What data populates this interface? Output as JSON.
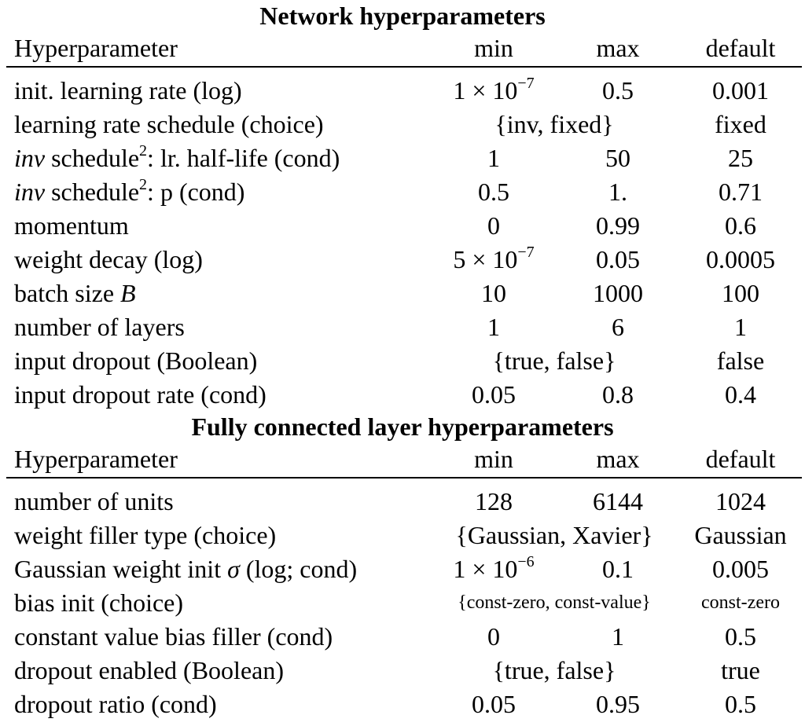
{
  "sections": [
    {
      "title": "Network hyperparameters",
      "headers": {
        "name": "Hyperparameter",
        "min": "min",
        "max": "max",
        "default": "default"
      },
      "rows": [
        {
          "name_html": "init. learning rate (log)",
          "min_html": "1 × 10<sup>−7</sup>",
          "max": "0.5",
          "default": "0.001"
        },
        {
          "name_html": "learning rate schedule (choice)",
          "choices": "{inv, fixed}",
          "default": "fixed"
        },
        {
          "name_html": "<i>inv</i> schedule<sup>2</sup>: lr. half-life (cond)",
          "min_html": "1",
          "max": "50",
          "default": "25"
        },
        {
          "name_html": "<i>inv</i> schedule<sup>2</sup>: p (cond)",
          "min_html": "0.5",
          "max": "1.",
          "default": "0.71"
        },
        {
          "name_html": "momentum",
          "min_html": "0",
          "max": "0.99",
          "default": "0.6"
        },
        {
          "name_html": "weight decay (log)",
          "min_html": "5 × 10<sup>−7</sup>",
          "max": "0.05",
          "default": "0.0005"
        },
        {
          "name_html": "batch size <i>B</i>",
          "min_html": "10",
          "max": "1000",
          "default": "100"
        },
        {
          "name_html": "number of layers",
          "min_html": "1",
          "max": "6",
          "default": "1"
        },
        {
          "name_html": "input dropout (Boolean)",
          "choices": "{true, false}",
          "default": "false"
        },
        {
          "name_html": "input dropout rate (cond)",
          "min_html": "0.05",
          "max": "0.8",
          "default": "0.4"
        }
      ]
    },
    {
      "title": "Fully connected layer hyperparameters",
      "headers": {
        "name": "Hyperparameter",
        "min": "min",
        "max": "max",
        "default": "default"
      },
      "rows": [
        {
          "name_html": "number of units",
          "min_html": "128",
          "max": "6144",
          "default": "1024"
        },
        {
          "name_html": "weight filler type (choice)",
          "choices": "{Gaussian, Xavier}",
          "default": "Gaussian"
        },
        {
          "name_html": "Gaussian weight init <i>σ</i> (log; cond)",
          "min_html": "1 × 10<sup>−6</sup>",
          "max": "0.1",
          "default": "0.005"
        },
        {
          "name_html": "bias init (choice)",
          "choices": "{const-zero, const-value}",
          "default": "const-zero",
          "small": true
        },
        {
          "name_html": "constant value bias filler (cond)",
          "min_html": "0",
          "max": "1",
          "default": "0.5"
        },
        {
          "name_html": "dropout enabled (Boolean)",
          "choices": "{true, false}",
          "default": "true"
        },
        {
          "name_html": "dropout ratio (cond)",
          "min_html": "0.05",
          "max": "0.95",
          "default": "0.5"
        }
      ]
    }
  ]
}
